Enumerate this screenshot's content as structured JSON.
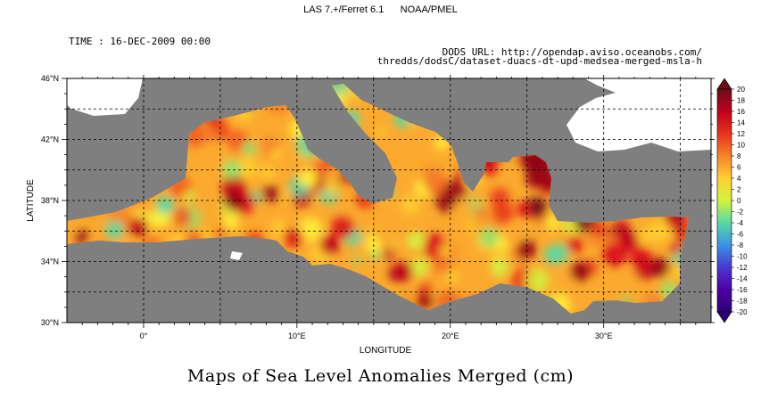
{
  "header": {
    "software": "LAS 7.+/Ferret 6.1",
    "org": "NOAA/PMEL"
  },
  "time_label": "TIME : 16-DEC-2009 00:00",
  "dods_line1": "DODS URL: http://opendap.aviso.oceanobs.com/",
  "dods_line2": "thredds/dodsC/dataset-duacs-dt-upd-medsea-merged-msla-h",
  "caption": "Maps of Sea Level Anomalies Merged (cm)",
  "chart_data": {
    "type": "heatmap",
    "xlabel": "LONGITUDE",
    "ylabel": "LATITUDE",
    "xlim": [
      -5,
      37
    ],
    "ylim": [
      30,
      46
    ],
    "x_ticks": [
      0,
      10,
      20,
      30
    ],
    "x_tick_labels": [
      "0°",
      "10°E",
      "20°E",
      "30°E"
    ],
    "y_ticks": [
      30,
      34,
      38,
      42,
      46
    ],
    "y_tick_labels": [
      "30°N",
      "34°N",
      "38°N",
      "42°N",
      "46°N"
    ],
    "grid": true,
    "colorbar": {
      "min": -20,
      "max": 20,
      "ticks": [
        20,
        18,
        16,
        14,
        12,
        10,
        8,
        6,
        4,
        2,
        0,
        -2,
        -4,
        -6,
        -8,
        -10,
        -12,
        -14,
        -16,
        -18,
        -20
      ],
      "colors": [
        "#6a0d17",
        "#950016",
        "#c0001c",
        "#d8071b",
        "#e7331b",
        "#ef5b21",
        "#f5832a",
        "#fbaa2f",
        "#ffd02f",
        "#fff23a",
        "#d3f33e",
        "#8be56d",
        "#58d8a3",
        "#48bfd9",
        "#3a93e6",
        "#3b62de",
        "#4a37cf",
        "#5a16bb",
        "#4e00a1",
        "#2f0075"
      ]
    },
    "value_range_observed": [
      -6,
      20
    ],
    "region": "Mediterranean Sea",
    "date": "16-DEC-2009"
  }
}
